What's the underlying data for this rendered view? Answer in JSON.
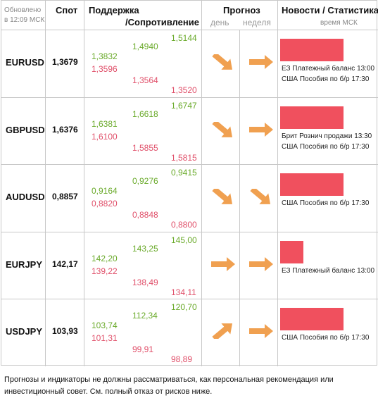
{
  "header": {
    "updated_line1": "Обновлено",
    "updated_line2": "в 12:09 МСК",
    "spot": "Спот",
    "support": "Поддержка",
    "resistance": "/Сопротивление",
    "forecast": "Прогноз",
    "day": "день",
    "week": "неделя",
    "news": "Новости / Статистика",
    "msk_time": "время МСК"
  },
  "rows": [
    {
      "pair": "EURUSD",
      "spot": "1,3679",
      "s1": "1,3832",
      "s2": "1,3596",
      "r1": "1,4940",
      "r2": "1,3564",
      "r3": "1,5144",
      "r4": "1,3520",
      "day_icon": "arrow-down-right-icon",
      "week_icon": "arrow-right-icon",
      "bar_value": 0.9,
      "news": [
        "ЕЗ Платежный баланс 13:00",
        "США Пособия по б/р 17:30"
      ]
    },
    {
      "pair": "GBPUSD",
      "spot": "1,6376",
      "s1": "1,6381",
      "s2": "1,6100",
      "r1": "1,6618",
      "r2": "1,5855",
      "r3": "1,6747",
      "r4": "1,5815",
      "day_icon": "arrow-down-right-icon",
      "week_icon": "arrow-right-icon",
      "bar_value": 0.9,
      "news": [
        "Брит Рознич продажи 13:30",
        "США Пособия по б/р 17:30"
      ]
    },
    {
      "pair": "AUDUSD",
      "spot": "0,8857",
      "s1": "0,9164",
      "s2": "0,8820",
      "r1": "0,9276",
      "r2": "0,8848",
      "r3": "0,9415",
      "r4": "0,8800",
      "day_icon": "arrow-down-right-icon",
      "week_icon": "arrow-down-right-icon",
      "bar_value": 0.9,
      "news": [
        "США Пособия по б/р 17:30"
      ]
    },
    {
      "pair": "EURJPY",
      "spot": "142,17",
      "s1": "142,20",
      "s2": "139,22",
      "r1": "143,25",
      "r2": "138,49",
      "r3": "145,00",
      "r4": "134,11",
      "day_icon": "arrow-right-icon",
      "week_icon": "arrow-right-icon",
      "bar_value": 0.33,
      "news": [
        "ЕЗ Платежный баланс 13:00"
      ]
    },
    {
      "pair": "USDJPY",
      "spot": "103,93",
      "s1": "103,74",
      "s2": "101,31",
      "r1": "112,34",
      "r2": "99,91",
      "r3": "120,70",
      "r4": "98,89",
      "day_icon": "arrow-up-right-icon",
      "week_icon": "arrow-right-icon",
      "bar_value": 0.9,
      "news": [
        "США Пособия по б/р 17:30"
      ]
    }
  ],
  "colors": {
    "green": "#6aaa2a",
    "red": "#e0506a",
    "bar": "#f0505e",
    "arrow": "#f0a050"
  },
  "disclaimer": "Прогнозы и индикаторы не должны рассматриваться, как персональная рекомендация или инвестиционный совет. См. полный отказ от рисков ниже."
}
